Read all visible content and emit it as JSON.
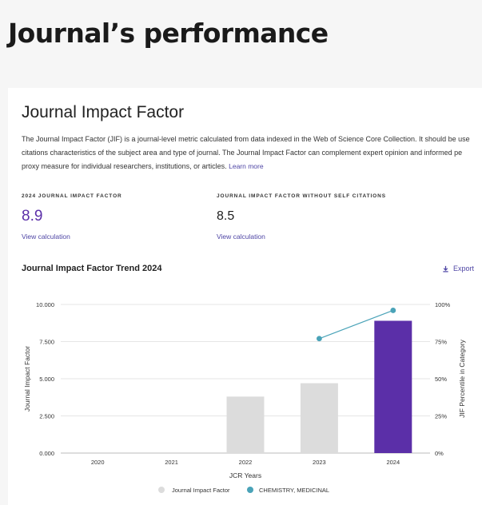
{
  "page": {
    "title": "Journal’s performance"
  },
  "card": {
    "title": "Journal Impact Factor",
    "description_lines": [
      "The Journal Impact Factor (JIF) is a journal-level metric calculated from data indexed in the Web of Science Core Collection. It should be use",
      "citations characteristics of the subject area and type of journal. The Journal Impact Factor can complement expert opinion and informed pe",
      "proxy measure for individual researchers, institutions, or articles."
    ],
    "learn_more": "Learn more"
  },
  "metrics": [
    {
      "label": "2024 JOURNAL IMPACT FACTOR",
      "value": "8.9",
      "link": "View calculation"
    },
    {
      "label": "JOURNAL IMPACT FACTOR WITHOUT SELF CITATIONS",
      "value": "8.5",
      "link": "View calculation"
    }
  ],
  "chart_section": {
    "title": "Journal Impact Factor Trend 2024",
    "export_label": "Export"
  },
  "colors": {
    "accent": "#5b2fa8",
    "link": "#4f46a5",
    "bar_gray": "#dcdcdc",
    "line_teal": "#4aa3b8"
  },
  "chart_data": {
    "type": "bar",
    "title": "Journal Impact Factor Trend 2024",
    "xlabel": "JCR Years",
    "ylabel": "Journal Impact Factor",
    "y2label": "JIF Percentile in Category",
    "categories": [
      "2020",
      "2021",
      "2022",
      "2023",
      "2024"
    ],
    "ylim": [
      0,
      10
    ],
    "y_ticks": [
      "0.000",
      "2.500",
      "5.000",
      "7.500",
      "10.000"
    ],
    "y2lim": [
      0,
      100
    ],
    "y2_ticks": [
      "0%",
      "25%",
      "50%",
      "75%",
      "100%"
    ],
    "series": [
      {
        "name": "Journal Impact Factor",
        "type": "bar",
        "values": [
          null,
          null,
          3.8,
          4.7,
          8.9
        ],
        "highlight_index": 4
      },
      {
        "name": "CHEMISTRY, MEDICINAL",
        "type": "line",
        "axis": "right",
        "values": [
          null,
          null,
          null,
          77,
          96
        ]
      }
    ],
    "grid": true,
    "legend": "bottom"
  }
}
